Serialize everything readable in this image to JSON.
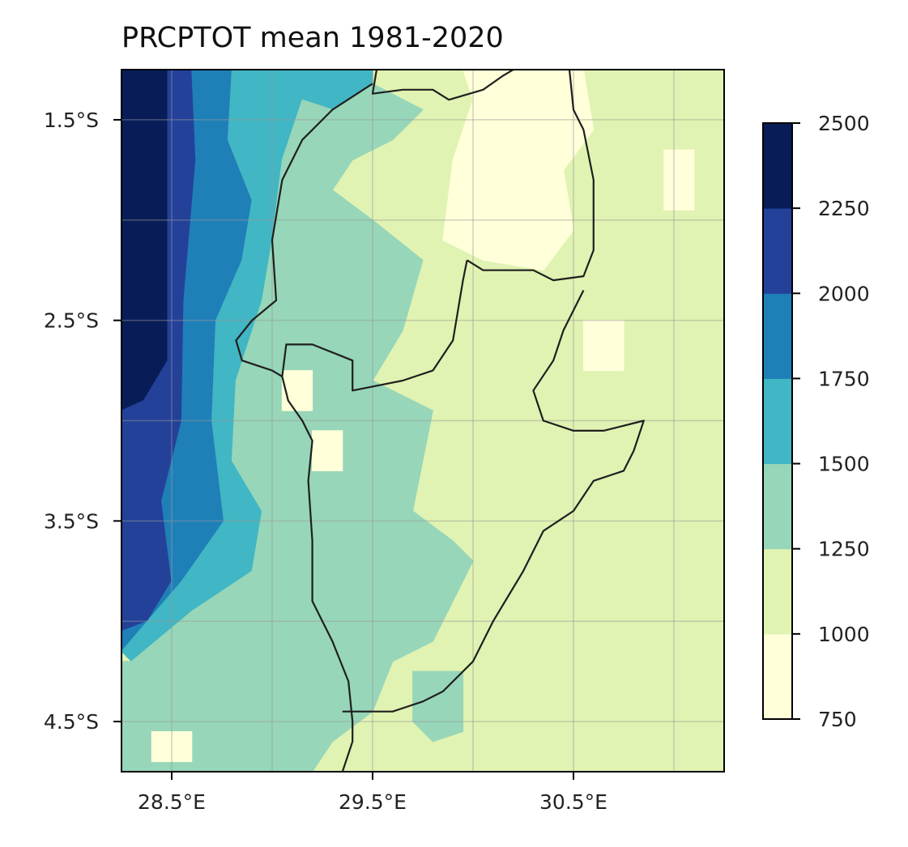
{
  "title": "PRCPTOT mean 1981-2020",
  "map": {
    "lon_range": [
      28.25,
      31.25
    ],
    "lat_range": [
      -1.25,
      -4.75
    ],
    "lon_ticks": [
      {
        "value": 28.5,
        "label": "28.5°E"
      },
      {
        "value": 29.5,
        "label": "29.5°E"
      },
      {
        "value": 30.5,
        "label": "30.5°E"
      }
    ],
    "lat_ticks": [
      {
        "value": -1.5,
        "label": "1.5°S"
      },
      {
        "value": -2.5,
        "label": "2.5°S"
      },
      {
        "value": -3.5,
        "label": "3.5°S"
      },
      {
        "value": -4.5,
        "label": "4.5°S"
      }
    ],
    "gridlines": [
      28.5,
      29.0,
      29.5,
      30.0,
      30.5,
      31.0
    ],
    "gridlines_lat": [
      -1.5,
      -2.0,
      -2.5,
      -3.0,
      -3.5,
      -4.0,
      -4.5
    ],
    "grid": true
  },
  "colorbar": {
    "levels": [
      750,
      1000,
      1250,
      1500,
      1750,
      2000,
      2250,
      2500
    ],
    "labels": [
      "750",
      "1000",
      "1250",
      "1500",
      "1750",
      "2000",
      "2250",
      "2500"
    ],
    "colors": [
      "#ffffd9",
      "#e0f3b2",
      "#97d6b9",
      "#41b6c4",
      "#1f80b8",
      "#24419a",
      "#081d58"
    ]
  },
  "regions": [
    {
      "name": "far-west-wet",
      "class": 6,
      "color": "#081d58",
      "polygon": [
        [
          28.25,
          -1.25
        ],
        [
          28.48,
          -1.25
        ],
        [
          28.48,
          -2.7
        ],
        [
          28.36,
          -2.9
        ],
        [
          28.25,
          -2.95
        ]
      ]
    },
    {
      "name": "west-2000",
      "class": 5,
      "color": "#24419a",
      "polygon": [
        [
          28.48,
          -1.25
        ],
        [
          28.6,
          -1.25
        ],
        [
          28.62,
          -1.7
        ],
        [
          28.56,
          -2.4
        ],
        [
          28.55,
          -3.0
        ],
        [
          28.45,
          -3.4
        ],
        [
          28.5,
          -3.8
        ],
        [
          28.38,
          -4.0
        ],
        [
          28.25,
          -4.05
        ],
        [
          28.25,
          -2.95
        ],
        [
          28.36,
          -2.9
        ],
        [
          28.48,
          -2.7
        ]
      ]
    },
    {
      "name": "west-1750",
      "class": 4,
      "color": "#1f80b8",
      "polygon": [
        [
          28.6,
          -1.25
        ],
        [
          28.8,
          -1.25
        ],
        [
          28.78,
          -1.6
        ],
        [
          28.9,
          -1.9
        ],
        [
          28.85,
          -2.2
        ],
        [
          28.72,
          -2.5
        ],
        [
          28.7,
          -3.0
        ],
        [
          28.76,
          -3.5
        ],
        [
          28.55,
          -3.8
        ],
        [
          28.25,
          -4.15
        ],
        [
          28.25,
          -4.05
        ],
        [
          28.38,
          -4.0
        ],
        [
          28.5,
          -3.8
        ],
        [
          28.45,
          -3.4
        ],
        [
          28.55,
          -3.0
        ],
        [
          28.56,
          -2.4
        ],
        [
          28.62,
          -1.7
        ]
      ]
    },
    {
      "name": "west-1500",
      "class": 3,
      "color": "#41b6c4",
      "polygon": [
        [
          28.8,
          -1.25
        ],
        [
          29.5,
          -1.25
        ],
        [
          29.5,
          -1.32
        ],
        [
          29.3,
          -1.45
        ],
        [
          29.15,
          -1.4
        ],
        [
          29.05,
          -1.7
        ],
        [
          29.0,
          -2.1
        ],
        [
          28.95,
          -2.4
        ],
        [
          28.82,
          -2.8
        ],
        [
          28.8,
          -3.2
        ],
        [
          28.95,
          -3.45
        ],
        [
          28.9,
          -3.75
        ],
        [
          28.6,
          -3.95
        ],
        [
          28.3,
          -4.2
        ],
        [
          28.25,
          -4.15
        ],
        [
          28.55,
          -3.8
        ],
        [
          28.76,
          -3.5
        ],
        [
          28.7,
          -3.0
        ],
        [
          28.72,
          -2.5
        ],
        [
          28.85,
          -2.2
        ],
        [
          28.9,
          -1.9
        ],
        [
          28.78,
          -1.6
        ]
      ]
    },
    {
      "name": "kivu-1500",
      "class": 3,
      "color": "#41b6c4",
      "polygon": [
        [
          29.0,
          -2.4
        ],
        [
          29.3,
          -2.35
        ],
        [
          29.45,
          -2.45
        ],
        [
          29.45,
          -2.75
        ],
        [
          29.3,
          -2.72
        ],
        [
          29.15,
          -2.6
        ]
      ]
    },
    {
      "name": "rusizi-1500",
      "class": 3,
      "color": "#41b6c4",
      "polygon": [
        [
          29.35,
          -2.85
        ],
        [
          29.5,
          -2.9
        ],
        [
          29.5,
          -3.1
        ],
        [
          29.35,
          -3.05
        ]
      ]
    },
    {
      "name": "central-1500",
      "class": 3,
      "color": "#41b6c4",
      "polygon": [
        [
          29.5,
          -3.45
        ],
        [
          29.68,
          -3.45
        ],
        [
          29.68,
          -3.62
        ],
        [
          29.5,
          -3.62
        ]
      ]
    },
    {
      "name": "mid-1250",
      "class": 2,
      "color": "#97d6b9",
      "polygon": [
        [
          29.5,
          -1.32
        ],
        [
          29.75,
          -1.45
        ],
        [
          29.6,
          -1.6
        ],
        [
          29.4,
          -1.7
        ],
        [
          29.3,
          -1.85
        ],
        [
          29.5,
          -2.0
        ],
        [
          29.75,
          -2.2
        ],
        [
          29.65,
          -2.55
        ],
        [
          29.5,
          -2.8
        ],
        [
          29.8,
          -2.95
        ],
        [
          29.75,
          -3.2
        ],
        [
          29.7,
          -3.45
        ],
        [
          29.9,
          -3.6
        ],
        [
          30.0,
          -3.7
        ],
        [
          29.9,
          -3.9
        ],
        [
          29.8,
          -4.1
        ],
        [
          29.6,
          -4.2
        ],
        [
          29.5,
          -4.45
        ],
        [
          29.3,
          -4.6
        ],
        [
          29.2,
          -4.75
        ],
        [
          28.25,
          -4.75
        ],
        [
          28.25,
          -4.2
        ],
        [
          28.3,
          -4.2
        ],
        [
          28.6,
          -3.95
        ],
        [
          28.9,
          -3.75
        ],
        [
          28.95,
          -3.45
        ],
        [
          28.8,
          -3.2
        ],
        [
          28.82,
          -2.8
        ],
        [
          28.95,
          -2.4
        ],
        [
          29.0,
          -2.1
        ],
        [
          29.05,
          -1.7
        ],
        [
          29.15,
          -1.4
        ],
        [
          29.3,
          -1.45
        ]
      ]
    },
    {
      "name": "south-1250",
      "class": 2,
      "color": "#97d6b9",
      "polygon": [
        [
          29.7,
          -4.25
        ],
        [
          29.95,
          -4.25
        ],
        [
          29.95,
          -4.55
        ],
        [
          29.8,
          -4.6
        ],
        [
          29.7,
          -4.5
        ]
      ]
    },
    {
      "name": "dry-northeast",
      "class": 0,
      "color": "#ffffd9",
      "polygon": [
        [
          29.95,
          -1.25
        ],
        [
          30.55,
          -1.25
        ],
        [
          30.6,
          -1.55
        ],
        [
          30.45,
          -1.75
        ],
        [
          30.5,
          -2.05
        ],
        [
          30.35,
          -2.25
        ],
        [
          30.05,
          -2.2
        ],
        [
          29.85,
          -2.1
        ],
        [
          29.9,
          -1.7
        ],
        [
          30.0,
          -1.4
        ]
      ]
    },
    {
      "name": "dry-east",
      "class": 0,
      "color": "#ffffd9",
      "polygon": [
        [
          30.95,
          -1.65
        ],
        [
          31.1,
          -1.65
        ],
        [
          31.1,
          -1.95
        ],
        [
          30.95,
          -1.95
        ]
      ]
    },
    {
      "name": "dry-mid",
      "class": 0,
      "color": "#ffffd9",
      "polygon": [
        [
          29.05,
          -2.75
        ],
        [
          29.2,
          -2.75
        ],
        [
          29.2,
          -2.95
        ],
        [
          29.05,
          -2.95
        ]
      ]
    },
    {
      "name": "dry-burundi",
      "class": 0,
      "color": "#ffffd9",
      "polygon": [
        [
          29.2,
          -3.05
        ],
        [
          29.35,
          -3.05
        ],
        [
          29.35,
          -3.25
        ],
        [
          29.2,
          -3.25
        ]
      ]
    },
    {
      "name": "dry-se",
      "class": 0,
      "color": "#ffffd9",
      "polygon": [
        [
          30.55,
          -2.5
        ],
        [
          30.75,
          -2.5
        ],
        [
          30.75,
          -2.75
        ],
        [
          30.55,
          -2.75
        ]
      ]
    },
    {
      "name": "dry-sw",
      "class": 0,
      "color": "#ffffd9",
      "polygon": [
        [
          28.4,
          -4.55
        ],
        [
          28.6,
          -4.55
        ],
        [
          28.6,
          -4.7
        ],
        [
          28.4,
          -4.7
        ]
      ]
    }
  ],
  "borders": [
    [
      [
        29.52,
        -1.25
      ],
      [
        29.5,
        -1.37
      ],
      [
        29.65,
        -1.35
      ],
      [
        29.8,
        -1.35
      ],
      [
        29.88,
        -1.4
      ],
      [
        30.05,
        -1.35
      ],
      [
        30.15,
        -1.28
      ],
      [
        30.2,
        -1.25
      ]
    ],
    [
      [
        29.5,
        -1.32
      ],
      [
        29.3,
        -1.45
      ],
      [
        29.15,
        -1.6
      ],
      [
        29.05,
        -1.8
      ],
      [
        29.0,
        -2.1
      ],
      [
        29.02,
        -2.4
      ],
      [
        28.9,
        -2.5
      ],
      [
        28.82,
        -2.6
      ],
      [
        28.85,
        -2.7
      ],
      [
        29.0,
        -2.75
      ],
      [
        29.05,
        -2.78
      ]
    ],
    [
      [
        29.05,
        -2.78
      ],
      [
        29.07,
        -2.62
      ],
      [
        29.2,
        -2.62
      ],
      [
        29.35,
        -2.68
      ],
      [
        29.4,
        -2.7
      ],
      [
        29.4,
        -2.85
      ],
      [
        29.55,
        -2.82
      ],
      [
        29.65,
        -2.8
      ],
      [
        29.8,
        -2.75
      ],
      [
        29.9,
        -2.6
      ],
      [
        29.95,
        -2.3
      ],
      [
        29.97,
        -2.2
      ]
    ],
    [
      [
        29.97,
        -2.2
      ],
      [
        30.05,
        -2.25
      ],
      [
        30.15,
        -2.25
      ],
      [
        30.3,
        -2.25
      ],
      [
        30.4,
        -2.3
      ],
      [
        30.55,
        -2.28
      ],
      [
        30.6,
        -2.15
      ],
      [
        30.6,
        -1.8
      ],
      [
        30.55,
        -1.55
      ],
      [
        30.5,
        -1.45
      ],
      [
        30.48,
        -1.25
      ]
    ],
    [
      [
        30.55,
        -2.35
      ],
      [
        30.45,
        -2.55
      ],
      [
        30.4,
        -2.7
      ],
      [
        30.3,
        -2.85
      ],
      [
        30.35,
        -3.0
      ],
      [
        30.5,
        -3.05
      ],
      [
        30.65,
        -3.05
      ],
      [
        30.85,
        -3.0
      ],
      [
        30.8,
        -3.15
      ],
      [
        30.75,
        -3.25
      ],
      [
        30.6,
        -3.3
      ],
      [
        30.5,
        -3.45
      ],
      [
        30.35,
        -3.55
      ],
      [
        30.25,
        -3.75
      ],
      [
        30.1,
        -4.0
      ],
      [
        30.0,
        -4.2
      ],
      [
        29.85,
        -4.35
      ],
      [
        29.75,
        -4.4
      ],
      [
        29.6,
        -4.45
      ],
      [
        29.35,
        -4.45
      ]
    ],
    [
      [
        29.05,
        -2.78
      ],
      [
        29.08,
        -2.9
      ],
      [
        29.15,
        -3.0
      ],
      [
        29.2,
        -3.1
      ],
      [
        29.18,
        -3.3
      ],
      [
        29.2,
        -3.6
      ],
      [
        29.2,
        -3.9
      ],
      [
        29.3,
        -4.1
      ],
      [
        29.38,
        -4.3
      ],
      [
        29.4,
        -4.5
      ],
      [
        29.4,
        -4.6
      ],
      [
        29.35,
        -4.75
      ]
    ]
  ]
}
